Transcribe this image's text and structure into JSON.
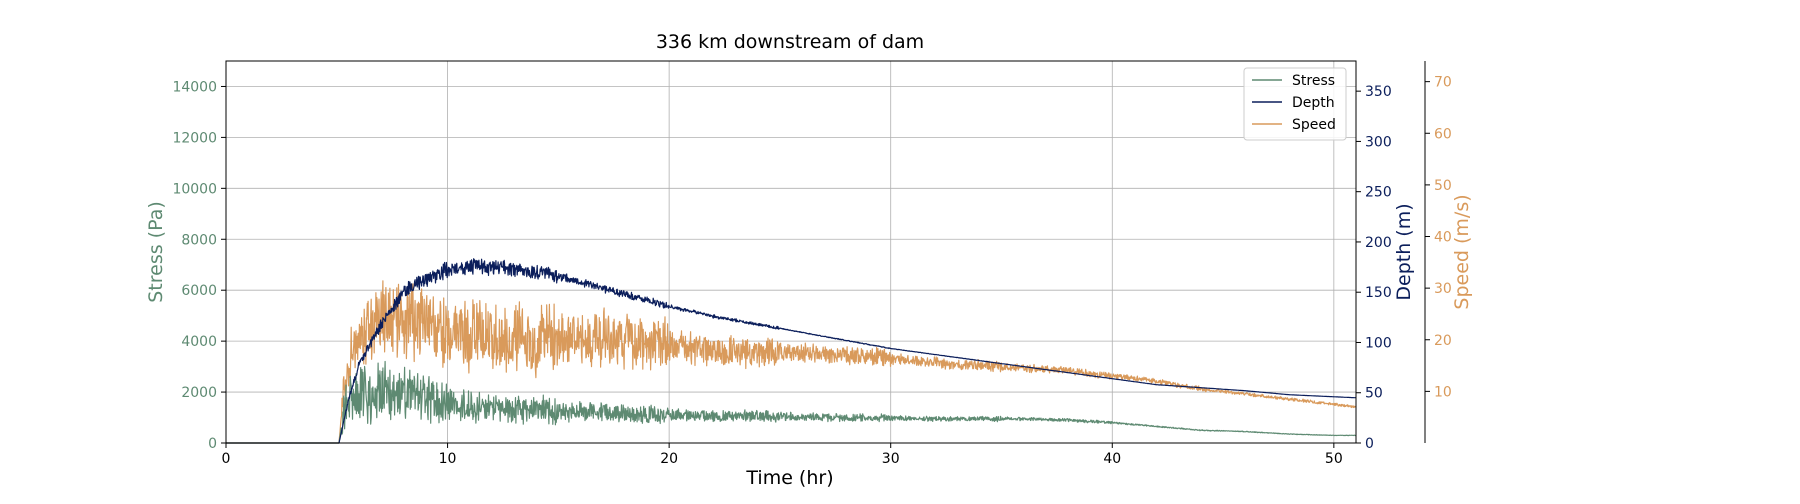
{
  "chart_data": {
    "type": "line",
    "title": "336 km downstream of dam",
    "xlabel": "Time (hr)",
    "xlim": [
      0,
      51
    ],
    "x_ticks": [
      0,
      10,
      20,
      30,
      40,
      50
    ],
    "grid": true,
    "legend_position": "top-right",
    "axes": {
      "stress": {
        "label": "Stress (Pa)",
        "ylim": [
          0,
          15000
        ],
        "ticks": [
          0,
          2000,
          4000,
          6000,
          8000,
          10000,
          12000,
          14000
        ],
        "color": "#5e8a72"
      },
      "depth": {
        "label": "Depth (m)",
        "ylim": [
          0,
          380
        ],
        "ticks": [
          0,
          50,
          100,
          150,
          200,
          250,
          300,
          350
        ],
        "color": "#0b1e5b"
      },
      "speed": {
        "label": "Speed (m/s)",
        "ylim": [
          0,
          74
        ],
        "ticks": [
          10,
          20,
          30,
          40,
          50,
          60,
          70
        ],
        "color": "#d99a5b"
      }
    },
    "series": [
      {
        "name": "Stress",
        "axis": "stress",
        "color": "#5e8a72",
        "noise": [
          0.7,
          0.5,
          0.38,
          0.25,
          0.18,
          0.12,
          0.08,
          0.05,
          0.04
        ],
        "x": [
          0,
          5.1,
          5.3,
          5.7,
          6.5,
          7.5,
          8.5,
          9.5,
          10.5,
          12,
          14,
          16,
          18,
          20,
          24,
          28,
          32,
          36,
          38,
          40,
          42,
          44,
          46,
          48,
          50,
          51
        ],
        "y": [
          0,
          0,
          1200,
          1900,
          2000,
          1900,
          1800,
          1600,
          1450,
          1350,
          1300,
          1250,
          1150,
          1100,
          1050,
          1000,
          950,
          950,
          900,
          800,
          650,
          500,
          450,
          350,
          300,
          300
        ]
      },
      {
        "name": "Depth",
        "axis": "depth",
        "color": "#0b1e5b",
        "noise": [
          0.06,
          0.05,
          0.03,
          0.015,
          0.005,
          0.003,
          0.002,
          0.002,
          0.001
        ],
        "x": [
          0,
          5.1,
          5.5,
          6,
          7,
          8,
          9,
          10,
          11,
          12,
          13,
          14,
          15,
          16,
          17,
          18,
          20,
          22,
          24,
          26,
          28,
          30,
          32,
          34,
          36,
          38,
          40,
          42,
          44,
          46,
          48,
          50,
          51
        ],
        "y": [
          0,
          0,
          40,
          78,
          118,
          150,
          163,
          172,
          176,
          175,
          173,
          170,
          166,
          160,
          154,
          148,
          136,
          126,
          118,
          110,
          102,
          94,
          88,
          82,
          76,
          70,
          64,
          58,
          55,
          52,
          48,
          46,
          45
        ]
      },
      {
        "name": "Speed",
        "axis": "speed",
        "color": "#d99a5b",
        "noise": [
          0.35,
          0.4,
          0.32,
          0.2,
          0.12,
          0.08,
          0.06,
          0.05,
          0.04
        ],
        "x": [
          0,
          5.1,
          5.3,
          5.7,
          6.5,
          7.5,
          8.5,
          10,
          12,
          14,
          16,
          18,
          20,
          22,
          24,
          26,
          28,
          30,
          32,
          34,
          36,
          38,
          40,
          42,
          44,
          46,
          48,
          50,
          51
        ],
        "y": [
          0,
          0,
          10,
          18,
          23,
          24.5,
          24,
          21,
          20.5,
          20,
          20.5,
          20,
          18.5,
          18,
          17.5,
          17.5,
          17,
          16.5,
          15.5,
          15,
          14.5,
          14,
          13,
          12,
          10.5,
          9.5,
          8.5,
          7.5,
          7
        ]
      }
    ]
  }
}
